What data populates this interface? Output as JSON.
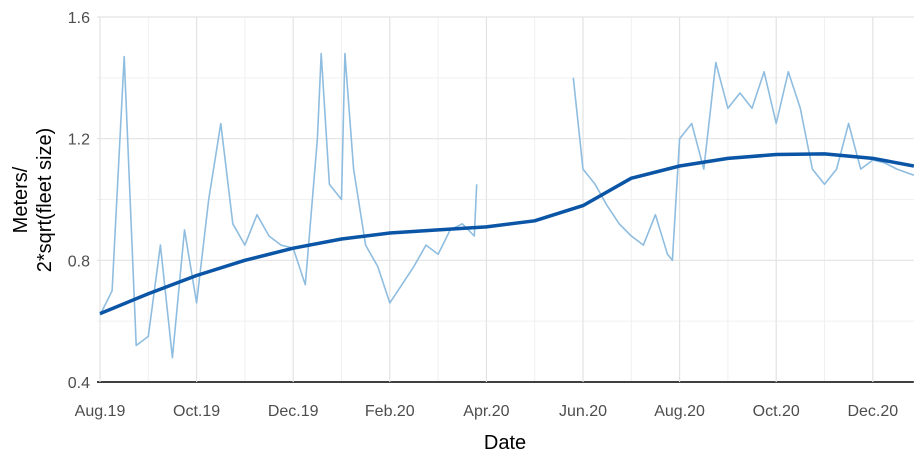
{
  "chart_data": {
    "type": "line",
    "xlabel": "Date",
    "ylabel": [
      "Meters/",
      "2*sqrt(fleet size)"
    ],
    "xlim": [
      0,
      16.85
    ],
    "xticks": [
      {
        "value": 0,
        "label": "Aug.19"
      },
      {
        "value": 2,
        "label": "Oct.19"
      },
      {
        "value": 4,
        "label": "Dec.19"
      },
      {
        "value": 6,
        "label": "Feb.20"
      },
      {
        "value": 8,
        "label": "Apr.20"
      },
      {
        "value": 10,
        "label": "Jun.20"
      },
      {
        "value": 12,
        "label": "Aug.20"
      },
      {
        "value": 14,
        "label": "Oct.20"
      },
      {
        "value": 16,
        "label": "Dec.20"
      }
    ],
    "ylim": [
      0.4,
      1.6
    ],
    "yticks": [
      0.4,
      0.8,
      1.2,
      1.6
    ],
    "grid": true,
    "minor_grid": true,
    "series": [
      {
        "color": "#8fbde0",
        "width": 1.6,
        "x": [
          0,
          0.25,
          0.5,
          0.75,
          1.0,
          1.25,
          1.5,
          1.75,
          2.0,
          2.25,
          2.5,
          2.75,
          3.0,
          3.25,
          3.5,
          3.75,
          4.0,
          4.25,
          4.5,
          4.58,
          4.75,
          5.0,
          5.07,
          5.25,
          5.5,
          5.75,
          6.0,
          6.25,
          6.5,
          6.75,
          7.0,
          7.25,
          7.5,
          7.75,
          7.8,
          8.8,
          9.8,
          10.0,
          10.25,
          10.5,
          10.75,
          11.0,
          11.25,
          11.5,
          11.75,
          11.85,
          12.0,
          12.25,
          12.5,
          12.75,
          13.0,
          13.25,
          13.5,
          13.75,
          14.0,
          14.25,
          14.5,
          14.75,
          15.0,
          15.25,
          15.5,
          15.75,
          16.0,
          16.25,
          16.5,
          16.85
        ],
        "values": [
          0.62,
          0.7,
          1.47,
          0.52,
          0.55,
          0.85,
          0.48,
          0.9,
          0.66,
          1.0,
          1.25,
          0.92,
          0.85,
          0.95,
          0.88,
          0.85,
          0.84,
          0.72,
          1.2,
          1.48,
          1.05,
          1.0,
          1.48,
          1.1,
          0.85,
          0.78,
          0.66,
          0.72,
          0.78,
          0.85,
          0.82,
          0.9,
          0.92,
          0.88,
          1.05,
          null,
          1.4,
          1.1,
          1.05,
          0.98,
          0.92,
          0.88,
          0.85,
          0.95,
          0.82,
          0.8,
          1.2,
          1.25,
          1.1,
          1.45,
          1.3,
          1.35,
          1.3,
          1.42,
          1.25,
          1.42,
          1.3,
          1.1,
          1.05,
          1.1,
          1.25,
          1.1,
          1.13,
          1.12,
          1.1,
          1.08
        ]
      },
      {
        "color": "#0a55a6",
        "width": 3.5,
        "x": [
          0,
          1,
          2,
          3,
          4,
          5,
          6,
          7,
          8,
          9,
          10,
          11,
          12,
          13,
          14,
          15,
          16,
          16.85
        ],
        "values": [
          0.625,
          0.69,
          0.75,
          0.8,
          0.84,
          0.87,
          0.89,
          0.9,
          0.91,
          0.93,
          0.98,
          1.07,
          1.11,
          1.135,
          1.148,
          1.15,
          1.135,
          1.11
        ]
      }
    ]
  }
}
